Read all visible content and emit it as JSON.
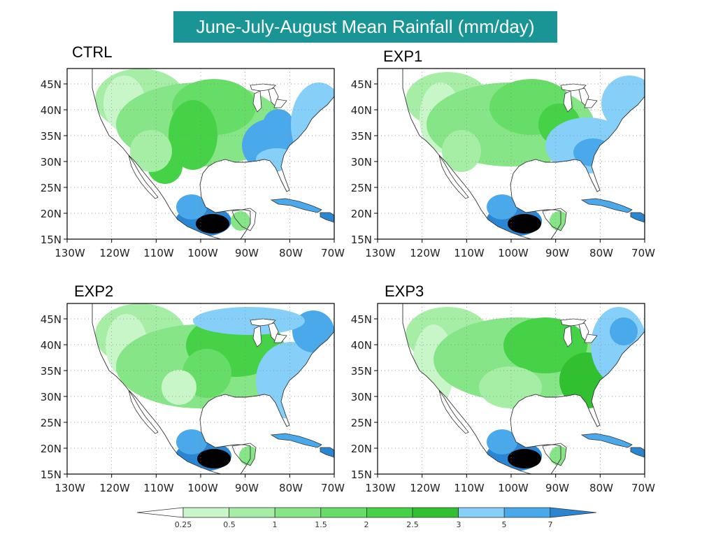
{
  "title": "June-July-August Mean Rainfall (mm/day)",
  "colors": {
    "title_bg": "#1a9595",
    "land_nodata": "#ffffff",
    "ocean": "#ffffff",
    "coast": "#333333"
  },
  "axes": {
    "lat_ticks": [
      "45N",
      "40N",
      "35N",
      "30N",
      "25N",
      "20N",
      "15N"
    ],
    "lon_ticks": [
      "130W",
      "120W",
      "110W",
      "100W",
      "90W",
      "80W",
      "70W"
    ]
  },
  "panels": [
    {
      "id": "ctrl",
      "label": "CTRL"
    },
    {
      "id": "exp1",
      "label": "EXP1"
    },
    {
      "id": "exp2",
      "label": "EXP2"
    },
    {
      "id": "exp3",
      "label": "EXP3"
    }
  ],
  "colorbar": {
    "levels": [
      "0.25",
      "0.5",
      "1",
      "1.5",
      "2",
      "2.5",
      "3",
      "5",
      "7"
    ],
    "colors": [
      "#ffffff",
      "#c8f6c8",
      "#a6eea6",
      "#86e586",
      "#66dd66",
      "#46d246",
      "#30c030",
      "#86cff8",
      "#4aa9ea",
      "#2a86d2"
    ]
  }
}
